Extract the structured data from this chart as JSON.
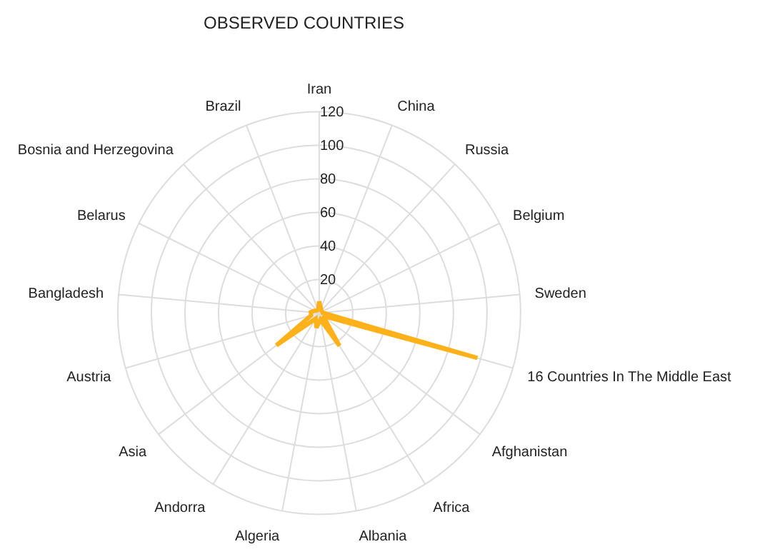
{
  "chart_data": {
    "type": "radar",
    "title": "OBSERVED COUNTRIES",
    "categories": [
      "Iran",
      "China",
      "Russia",
      "Belgium",
      "Sweden",
      "16 Countries In The Middle East",
      "Afghanistan",
      "Africa",
      "Albania",
      "Algeria",
      "Andorra",
      "Asia",
      "Austria",
      "Bangladesh",
      "Belarus",
      "Bosnia and Herzegovina",
      "Brazil"
    ],
    "series": [
      {
        "color": "#ffb11a",
        "values": [
          7,
          3,
          2,
          2,
          2,
          98,
          3,
          23,
          4,
          9,
          4,
          32,
          5,
          5,
          3,
          2,
          2
        ]
      }
    ],
    "ylim": [
      0,
      120
    ],
    "yticks": [
      20,
      40,
      60,
      80,
      100,
      120
    ],
    "grid": true,
    "marker": "none"
  }
}
